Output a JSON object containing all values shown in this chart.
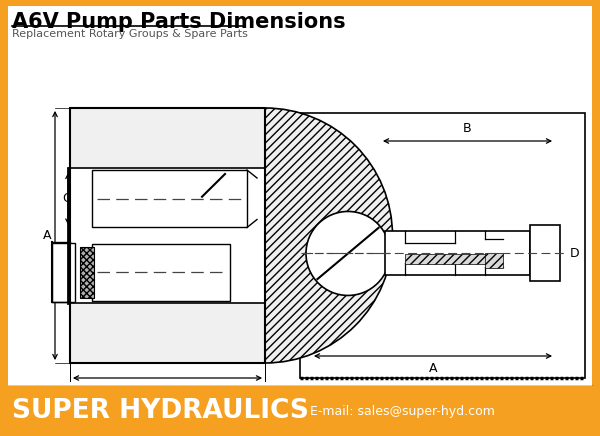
{
  "title": "A6V Pump Parts Dimensions",
  "subtitle": "Replacement Rotary Groups & Spare Parts",
  "footer_text": "SUPER HYDRAULICS",
  "footer_email": "E-mail: sales@super-hyd.com",
  "footer_bg": "#F5A020",
  "footer_text_color": "#FFFFFF",
  "bg_color": "#FFFFFF",
  "border_color": "#000000",
  "line_color": "#444444",
  "lc2": "#222222",
  "title_fontsize": 15,
  "subtitle_fontsize": 8,
  "footer_fontsize": 19,
  "email_fontsize": 9
}
